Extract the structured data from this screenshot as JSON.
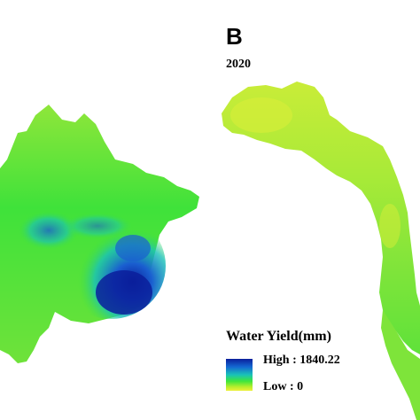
{
  "panel": {
    "letter": "B",
    "year": "2020"
  },
  "legend": {
    "title": "Water Yield(mm)",
    "high_label": "High : 1840.22",
    "low_label": "Low : 0",
    "high_value": 1840.22,
    "low_value": 0,
    "colors": [
      "#0a1e9b",
      "#1467d2",
      "#19c2b8",
      "#3ee63c",
      "#b7ee2c",
      "#eef03a"
    ]
  },
  "map": {
    "colors": {
      "green": "#3fe23a",
      "light_green": "#8fe63a",
      "yellow_green": "#c9ec38",
      "cyan": "#19c2b8",
      "blue": "#1a5fd0",
      "dark_blue": "#0a1e9b"
    }
  }
}
